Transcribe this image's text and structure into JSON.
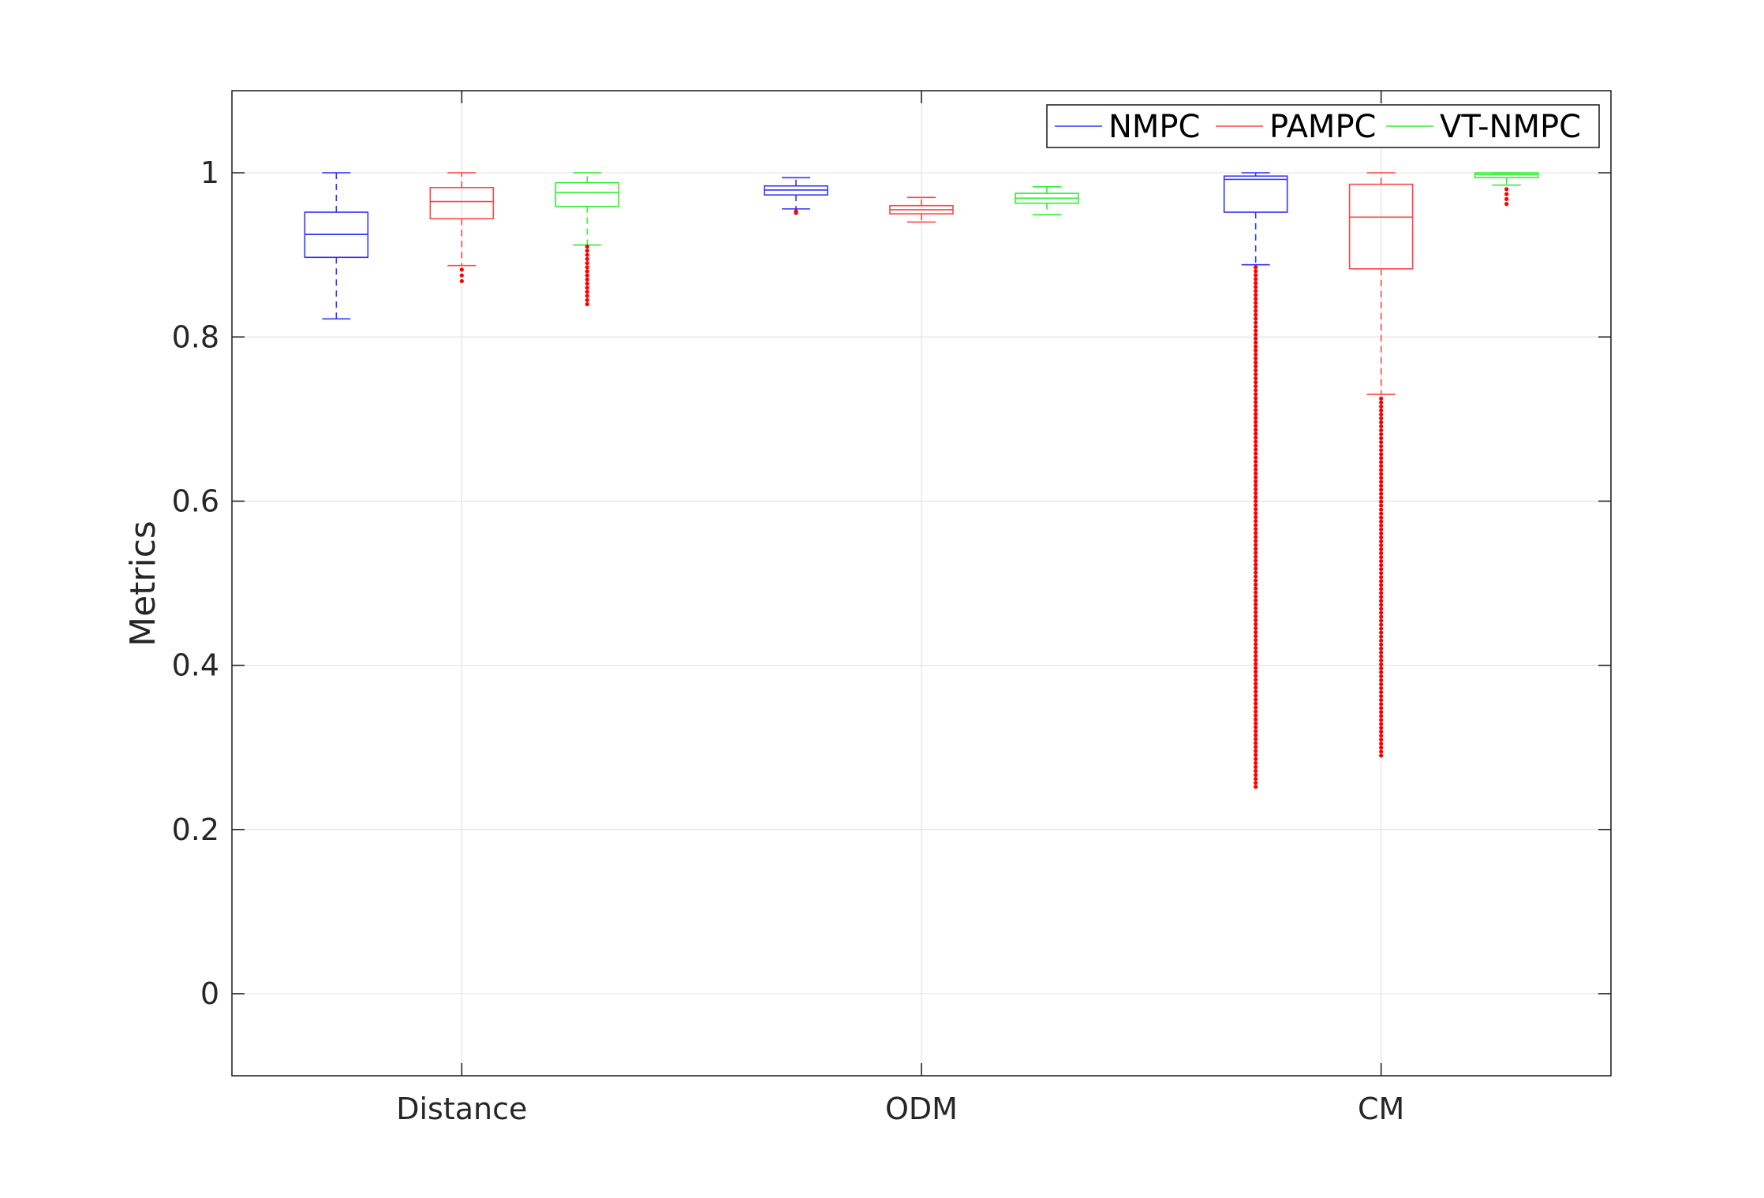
{
  "chart_data": {
    "type": "boxplot",
    "categories": [
      "Distance",
      "ODM",
      "CM"
    ],
    "ylabel": "Metrics",
    "xlabel": "",
    "ylim": [
      -0.1,
      1.1
    ],
    "yticks": [
      0,
      0.2,
      0.4,
      0.6,
      0.8,
      1
    ],
    "ytick_labels": [
      "0",
      "0.2",
      "0.4",
      "0.6",
      "0.8",
      "1"
    ],
    "grid": true,
    "legend_position": "top-right",
    "outlier_color": "#ff0000",
    "series": [
      {
        "name": "NMPC",
        "color": "#3333ff",
        "boxes": [
          {
            "q1": 0.897,
            "median": 0.925,
            "q3": 0.952,
            "whisker_low": 0.822,
            "whisker_high": 1.0,
            "outliers": []
          },
          {
            "q1": 0.973,
            "median": 0.979,
            "q3": 0.984,
            "whisker_low": 0.956,
            "whisker_high": 0.994,
            "outliers": [
              0.951,
              0.953
            ]
          },
          {
            "q1": 0.952,
            "median": 0.992,
            "q3": 0.996,
            "whisker_low": 0.888,
            "whisker_high": 1.0,
            "outliers": [
              0.252,
              0.3,
              0.35,
              0.4,
              0.45,
              0.5,
              0.55,
              0.6,
              0.65,
              0.7,
              0.75,
              0.8,
              0.85,
              0.885
            ]
          }
        ]
      },
      {
        "name": "PAMPC",
        "color": "#ff4444",
        "boxes": [
          {
            "q1": 0.944,
            "median": 0.965,
            "q3": 0.982,
            "whisker_low": 0.887,
            "whisker_high": 1.0,
            "outliers": [
              0.868,
              0.875,
              0.882
            ]
          },
          {
            "q1": 0.95,
            "median": 0.955,
            "q3": 0.96,
            "whisker_low": 0.94,
            "whisker_high": 0.97,
            "outliers": []
          },
          {
            "q1": 0.883,
            "median": 0.946,
            "q3": 0.986,
            "whisker_low": 0.73,
            "whisker_high": 1.0,
            "outliers": [
              0.29,
              0.35,
              0.4,
              0.45,
              0.5,
              0.55,
              0.6,
              0.65,
              0.7,
              0.725
            ]
          }
        ]
      },
      {
        "name": "VT-NMPC",
        "color": "#33ee33",
        "boxes": [
          {
            "q1": 0.959,
            "median": 0.976,
            "q3": 0.988,
            "whisker_low": 0.912,
            "whisker_high": 1.0,
            "outliers": [
              0.84,
              0.86,
              0.88,
              0.9,
              0.91
            ]
          },
          {
            "q1": 0.963,
            "median": 0.969,
            "q3": 0.975,
            "whisker_low": 0.949,
            "whisker_high": 0.983,
            "outliers": []
          },
          {
            "q1": 0.994,
            "median": 0.998,
            "q3": 1.0,
            "whisker_low": 0.985,
            "whisker_high": 1.0,
            "outliers": [
              0.962,
              0.968,
              0.974,
              0.98
            ]
          }
        ]
      }
    ]
  }
}
